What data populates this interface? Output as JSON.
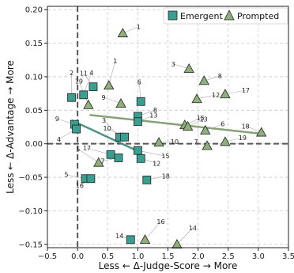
{
  "chart_data": {
    "type": "scatter",
    "title": "",
    "xlabel": "Less ← Δ-Judge-Score → More",
    "ylabel": "Less ← Δ-Advantage → More",
    "xlim": [
      -0.5,
      3.5
    ],
    "ylim": [
      -0.155,
      0.205
    ],
    "xticks": [
      -0.5,
      0.0,
      0.5,
      1.0,
      1.5,
      2.0,
      2.5,
      3.0,
      3.5
    ],
    "xtick_labels": [
      "−0.5",
      "0.0",
      "0.5",
      "1.0",
      "1.5",
      "2.0",
      "2.5",
      "3.0",
      "3.5"
    ],
    "yticks": [
      -0.15,
      -0.1,
      -0.05,
      0.0,
      0.05,
      0.1,
      0.15,
      0.2
    ],
    "ytick_labels": [
      "−0.15",
      "−0.10",
      "−0.05",
      "0.00",
      "0.05",
      "0.10",
      "0.15",
      "0.20"
    ],
    "grid": true,
    "reference_lines": {
      "x": 0.0,
      "y": 0.0
    },
    "legend_position": "top-right",
    "series": [
      {
        "name": "Emergent",
        "marker": "square",
        "color": "#3a9e90",
        "points": [
          {
            "x": -0.1,
            "y": 0.069,
            "label": "2"
          },
          {
            "x": 0.1,
            "y": 0.073,
            "label": "4"
          },
          {
            "x": 0.26,
            "y": 0.085,
            "label": "11"
          },
          {
            "x": 1.05,
            "y": 0.063,
            "label": "6"
          },
          {
            "x": 1.0,
            "y": 0.041,
            "label": "8"
          },
          {
            "x": 1.0,
            "y": 0.033,
            "label": "13"
          },
          {
            "x": -0.05,
            "y": 0.029,
            "label": "9"
          },
          {
            "x": -0.02,
            "y": 0.022,
            "label": "4"
          },
          {
            "x": 0.7,
            "y": 0.01,
            "label": "3"
          },
          {
            "x": 0.78,
            "y": 0.01,
            "label": "10"
          },
          {
            "x": 1.0,
            "y": -0.01,
            "label": "15"
          },
          {
            "x": 1.05,
            "y": -0.022,
            "label": "12"
          },
          {
            "x": 0.55,
            "y": -0.016,
            "label": "17"
          },
          {
            "x": 0.68,
            "y": -0.021,
            "label": "7"
          },
          {
            "x": 0.13,
            "y": -0.052,
            "label": "5"
          },
          {
            "x": 0.22,
            "y": -0.052,
            "label": "16"
          },
          {
            "x": 1.15,
            "y": -0.054,
            "label": "18"
          },
          {
            "x": 0.88,
            "y": -0.143,
            "label": "14"
          }
        ]
      },
      {
        "name": "Prompted",
        "marker": "triangle",
        "color": "#8fb07a",
        "points": [
          {
            "x": 0.75,
            "y": 0.165,
            "label": "1"
          },
          {
            "x": 0.52,
            "y": 0.087,
            "label": "1"
          },
          {
            "x": 1.85,
            "y": 0.112,
            "label": "3"
          },
          {
            "x": 2.1,
            "y": 0.094,
            "label": "8"
          },
          {
            "x": 2.45,
            "y": 0.074,
            "label": "17"
          },
          {
            "x": 1.98,
            "y": 0.067,
            "label": "12"
          },
          {
            "x": 0.18,
            "y": 0.058,
            "label": "19"
          },
          {
            "x": 0.72,
            "y": 0.06,
            "label": "9"
          },
          {
            "x": 1.78,
            "y": 0.028,
            "label": "15"
          },
          {
            "x": 1.83,
            "y": 0.026,
            "label": "13"
          },
          {
            "x": 2.12,
            "y": 0.02,
            "label": "6"
          },
          {
            "x": 3.05,
            "y": 0.017,
            "label": "18"
          },
          {
            "x": 2.45,
            "y": 0.003,
            "label": "19"
          },
          {
            "x": 2.15,
            "y": -0.003,
            "label": "7"
          },
          {
            "x": 1.35,
            "y": 0.002,
            "label": "10"
          },
          {
            "x": 0.35,
            "y": -0.028,
            "label": "5"
          },
          {
            "x": 1.12,
            "y": -0.143,
            "label": "16"
          },
          {
            "x": 1.65,
            "y": -0.15,
            "label": "14"
          }
        ]
      }
    ],
    "trend_lines": [
      {
        "series": "Emergent",
        "x": [
          -0.1,
          1.05
        ],
        "y": [
          0.035,
          -0.013
        ]
      },
      {
        "series": "Prompted",
        "x": [
          0.2,
          3.05
        ],
        "y": [
          0.043,
          0.015
        ]
      }
    ]
  }
}
